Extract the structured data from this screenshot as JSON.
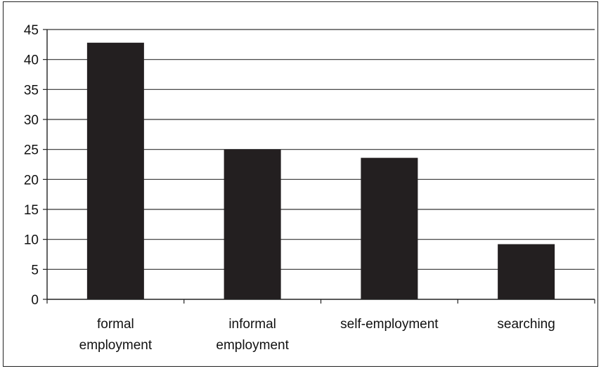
{
  "chart_data": {
    "type": "bar",
    "categories": [
      [
        "formal",
        "employment"
      ],
      [
        "informal",
        "employment"
      ],
      [
        "self-employment"
      ],
      [
        "searching"
      ]
    ],
    "values": [
      42.8,
      25.0,
      23.6,
      9.2
    ],
    "ylim": [
      0,
      45
    ],
    "yticks": [
      0,
      5,
      10,
      15,
      20,
      25,
      30,
      35,
      40,
      45
    ],
    "grid": true,
    "legend": "none",
    "bar_color": "#231f20",
    "grid_color": "#333333",
    "title": "",
    "xlabel": "",
    "ylabel": ""
  }
}
